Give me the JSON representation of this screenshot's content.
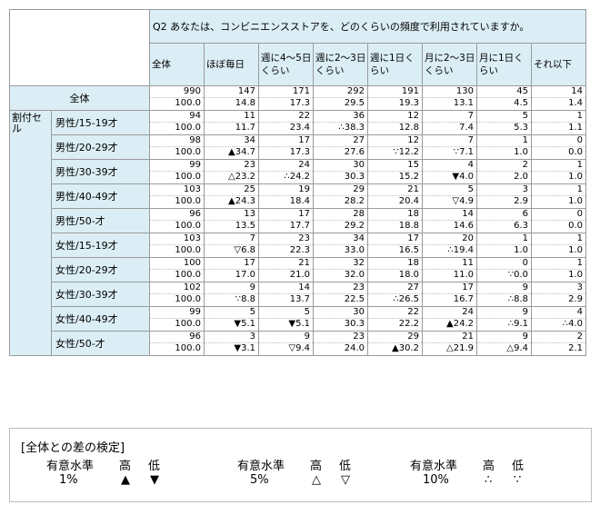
{
  "question": "Q2 あなたは、コンビニエンスストアを、どのくらいの頻度で利用されていますか。",
  "columns": [
    "全体",
    "ほぼ毎日",
    "週に4～5日くらい",
    "週に2～3日くらい",
    "週に1日くらい",
    "月に2～3日くらい",
    "月に1日くらい",
    "それ以下"
  ],
  "total_row": {
    "label": "全体",
    "counts": [
      "990",
      "147",
      "171",
      "292",
      "191",
      "130",
      "45",
      "14"
    ],
    "pcts": [
      "100.0",
      "14.8",
      "17.3",
      "29.5",
      "19.3",
      "13.1",
      "4.5",
      "1.4"
    ]
  },
  "group_label": "割付セル",
  "rows": [
    {
      "label": "男性/15-19才",
      "counts": [
        "94",
        "11",
        "22",
        "36",
        "12",
        "7",
        "5",
        "1"
      ],
      "pcts": [
        "100.0",
        "11.7",
        "23.4",
        "38.3",
        "12.8",
        "7.4",
        "5.3",
        "1.1"
      ],
      "marks": [
        "",
        "",
        "",
        "∴",
        "",
        "",
        "",
        ""
      ]
    },
    {
      "label": "男性/20-29才",
      "counts": [
        "98",
        "34",
        "17",
        "27",
        "12",
        "7",
        "1",
        "0"
      ],
      "pcts": [
        "100.0",
        "34.7",
        "17.3",
        "27.6",
        "12.2",
        "7.1",
        "1.0",
        "0.0"
      ],
      "marks": [
        "",
        "▲",
        "",
        "",
        "∵",
        "∵",
        "",
        ""
      ]
    },
    {
      "label": "男性/30-39才",
      "counts": [
        "99",
        "23",
        "24",
        "30",
        "15",
        "4",
        "2",
        "1"
      ],
      "pcts": [
        "100.0",
        "23.2",
        "24.2",
        "30.3",
        "15.2",
        "4.0",
        "2.0",
        "1.0"
      ],
      "marks": [
        "",
        "△",
        "∴",
        "",
        "",
        "▼",
        "",
        ""
      ]
    },
    {
      "label": "男性/40-49才",
      "counts": [
        "103",
        "25",
        "19",
        "29",
        "21",
        "5",
        "3",
        "1"
      ],
      "pcts": [
        "100.0",
        "24.3",
        "18.4",
        "28.2",
        "20.4",
        "4.9",
        "2.9",
        "1.0"
      ],
      "marks": [
        "",
        "▲",
        "",
        "",
        "",
        "▽",
        "",
        ""
      ]
    },
    {
      "label": "男性/50-才",
      "counts": [
        "96",
        "13",
        "17",
        "28",
        "18",
        "14",
        "6",
        "0"
      ],
      "pcts": [
        "100.0",
        "13.5",
        "17.7",
        "29.2",
        "18.8",
        "14.6",
        "6.3",
        "0.0"
      ],
      "marks": [
        "",
        "",
        "",
        "",
        "",
        "",
        "",
        ""
      ]
    },
    {
      "label": "女性/15-19才",
      "counts": [
        "103",
        "7",
        "23",
        "34",
        "17",
        "20",
        "1",
        "1"
      ],
      "pcts": [
        "100.0",
        "6.8",
        "22.3",
        "33.0",
        "16.5",
        "19.4",
        "1.0",
        "1.0"
      ],
      "marks": [
        "",
        "▽",
        "",
        "",
        "",
        "∴",
        "",
        ""
      ]
    },
    {
      "label": "女性/20-29才",
      "counts": [
        "100",
        "17",
        "21",
        "32",
        "18",
        "11",
        "0",
        "1"
      ],
      "pcts": [
        "100.0",
        "17.0",
        "21.0",
        "32.0",
        "18.0",
        "11.0",
        "0.0",
        "1.0"
      ],
      "marks": [
        "",
        "",
        "",
        "",
        "",
        "",
        "∵",
        ""
      ]
    },
    {
      "label": "女性/30-39才",
      "counts": [
        "102",
        "9",
        "14",
        "23",
        "27",
        "17",
        "9",
        "3"
      ],
      "pcts": [
        "100.0",
        "8.8",
        "13.7",
        "22.5",
        "26.5",
        "16.7",
        "8.8",
        "2.9"
      ],
      "marks": [
        "",
        "∵",
        "",
        "",
        "∴",
        "",
        "∴",
        ""
      ]
    },
    {
      "label": "女性/40-49才",
      "counts": [
        "99",
        "5",
        "5",
        "30",
        "22",
        "24",
        "9",
        "4"
      ],
      "pcts": [
        "100.0",
        "5.1",
        "5.1",
        "30.3",
        "22.2",
        "24.2",
        "9.1",
        "4.0"
      ],
      "marks": [
        "",
        "▼",
        "▼",
        "",
        "",
        "▲",
        "∴",
        "∴"
      ]
    },
    {
      "label": "女性/50-才",
      "counts": [
        "96",
        "3",
        "9",
        "23",
        "29",
        "21",
        "9",
        "2"
      ],
      "pcts": [
        "100.0",
        "3.1",
        "9.4",
        "24.0",
        "30.2",
        "21.9",
        "9.4",
        "2.1"
      ],
      "marks": [
        "",
        "▼",
        "▽",
        "",
        "▲",
        "△",
        "△",
        ""
      ]
    }
  ],
  "legend": {
    "title": "[全体との差の検定]",
    "groups": [
      {
        "level_label": "有意水準",
        "high_label": "高",
        "low_label": "低",
        "level": "1%",
        "high": "▲",
        "low": "▼"
      },
      {
        "level_label": "有意水準",
        "high_label": "高",
        "low_label": "低",
        "level": "5%",
        "high": "△",
        "low": "▽"
      },
      {
        "level_label": "有意水準",
        "high_label": "高",
        "low_label": "低",
        "level": "10%",
        "high": "∴",
        "low": "∵"
      }
    ]
  }
}
